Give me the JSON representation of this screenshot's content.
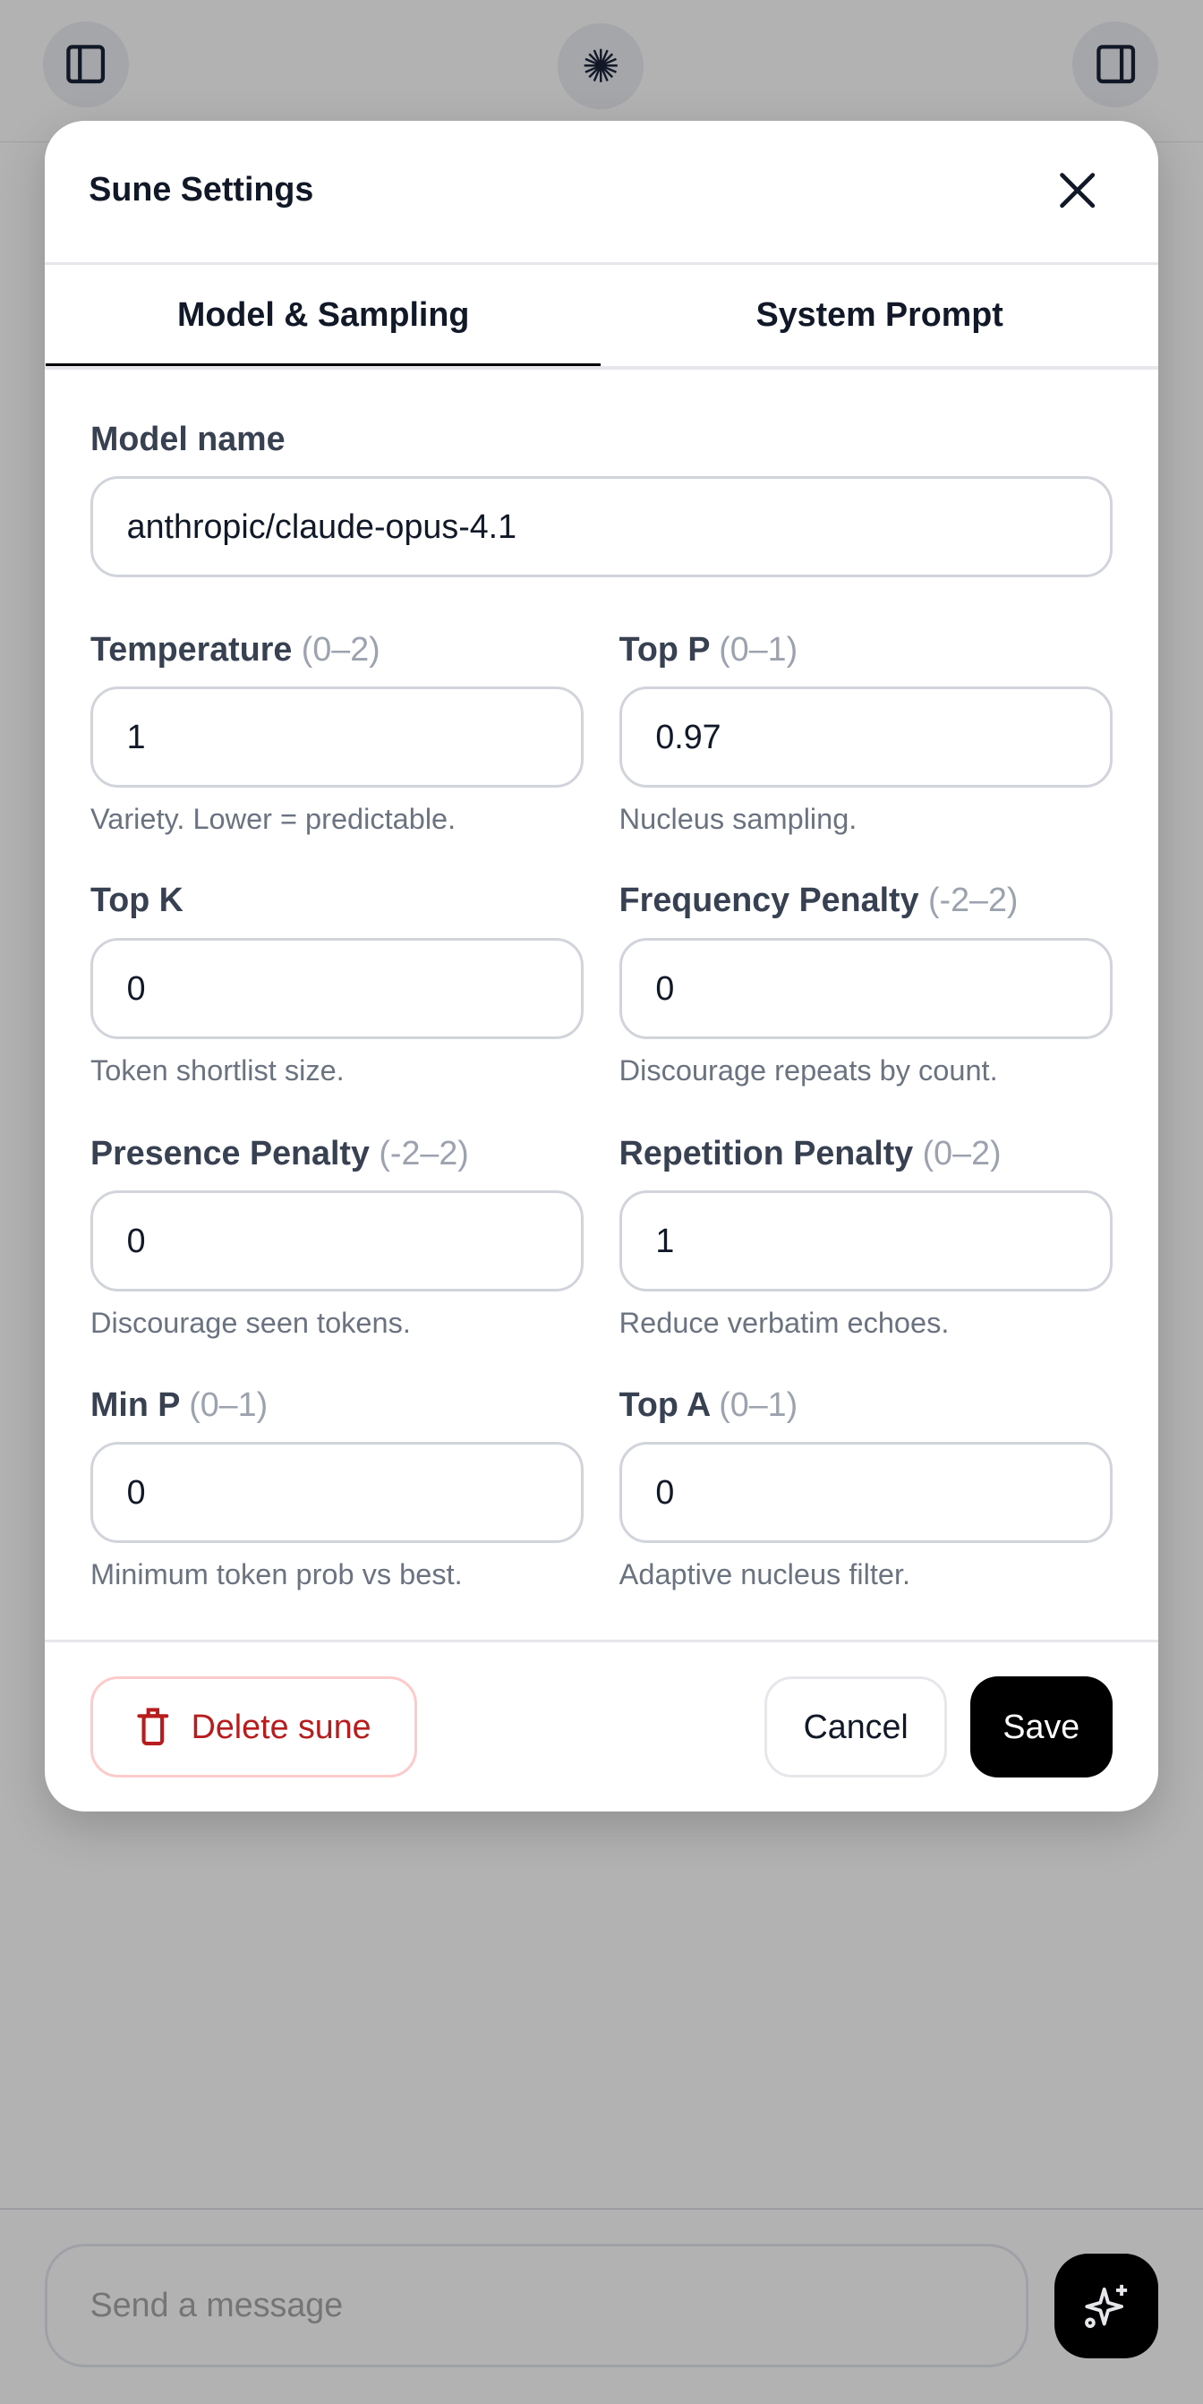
{
  "topbar": {
    "left_icon": "sidebar-left-icon",
    "center_icon": "starburst-logo-icon",
    "right_icon": "sidebar-right-icon"
  },
  "modal": {
    "title": "Sune Settings",
    "close_icon": "close-icon",
    "tabs": [
      {
        "label": "Model & Sampling",
        "active": true
      },
      {
        "label": "System Prompt",
        "active": false
      }
    ],
    "model_name": {
      "label": "Model name",
      "value": "anthropic/claude-opus-4.1"
    },
    "fields": [
      {
        "label": "Temperature",
        "range": "(0–2)",
        "value": "1",
        "help": "Variety. Lower = predictable."
      },
      {
        "label": "Top P",
        "range": "(0–1)",
        "value": "0.97",
        "help": "Nucleus sampling."
      },
      {
        "label": "Top K",
        "range": "",
        "value": "0",
        "help": "Token shortlist size."
      },
      {
        "label": "Frequency Penalty",
        "range": "(-2–2)",
        "value": "0",
        "help": "Discourage repeats by count."
      },
      {
        "label": "Presence Penalty",
        "range": "(-2–2)",
        "value": "0",
        "help": "Discourage seen tokens."
      },
      {
        "label": "Repetition Penalty",
        "range": "(0–2)",
        "value": "1",
        "help": "Reduce verbatim echoes."
      },
      {
        "label": "Min P",
        "range": "(0–1)",
        "value": "0",
        "help": "Minimum token prob vs best."
      },
      {
        "label": "Top A",
        "range": "(0–1)",
        "value": "0",
        "help": "Adaptive nucleus filter."
      }
    ],
    "footer": {
      "delete_label": "Delete sune",
      "delete_icon": "trash-icon",
      "cancel_label": "Cancel",
      "save_label": "Save"
    }
  },
  "composer": {
    "placeholder": "Send a message",
    "action_icon": "sparkles-icon"
  },
  "colors": {
    "danger": "#b91c1c",
    "primary": "#000000",
    "overlay": "#b2b2b2"
  }
}
